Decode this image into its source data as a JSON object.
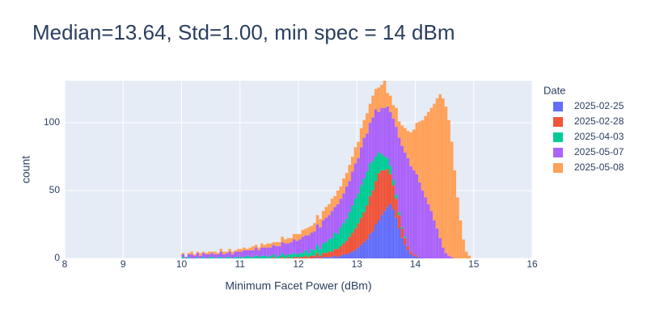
{
  "chart_data": {
    "type": "histogram",
    "barmode": "stack",
    "title": "Median=13.64, Std=1.00, min spec = 14 dBm",
    "x_label": "Minimum Facet Power (dBm)",
    "y_label": "count",
    "legend_title": "Date",
    "xlim": [
      8,
      16
    ],
    "xticks": [
      8,
      9,
      10,
      11,
      12,
      13,
      14,
      15,
      16
    ],
    "ylim": [
      0,
      131
    ],
    "yticks": [
      0,
      50,
      100
    ],
    "grid": true,
    "legend_position": "right",
    "bins": [
      10,
      10.05,
      10.1,
      10.15,
      10.2,
      10.25,
      10.3,
      10.35,
      10.4,
      10.45,
      10.5,
      10.55,
      10.6,
      10.65,
      10.7,
      10.75,
      10.8,
      10.85,
      10.9,
      10.95,
      11,
      11.05,
      11.1,
      11.15,
      11.2,
      11.25,
      11.3,
      11.35,
      11.4,
      11.45,
      11.5,
      11.55,
      11.6,
      11.65,
      11.7,
      11.75,
      11.8,
      11.85,
      11.9,
      11.95,
      12,
      12.05,
      12.1,
      12.15,
      12.2,
      12.25,
      12.3,
      12.35,
      12.4,
      12.45,
      12.5,
      12.55,
      12.6,
      12.65,
      12.7,
      12.75,
      12.8,
      12.85,
      12.9,
      12.95,
      13,
      13.05,
      13.1,
      13.15,
      13.2,
      13.25,
      13.3,
      13.35,
      13.4,
      13.45,
      13.5,
      13.55,
      13.6,
      13.65,
      13.7,
      13.75,
      13.8,
      13.85,
      13.9,
      13.95,
      14,
      14.05,
      14.1,
      14.15,
      14.2,
      14.25,
      14.3,
      14.35,
      14.4,
      14.45,
      14.5,
      14.55,
      14.6,
      14.65,
      14.7,
      14.75,
      14.8,
      14.85,
      14.9,
      14.95,
      15
    ],
    "series": [
      {
        "name": "2025-02-25",
        "color": "#636efa",
        "values": [
          0,
          0,
          0,
          0,
          0,
          0,
          0,
          0,
          0,
          0,
          0,
          0,
          0,
          0,
          0,
          0,
          0,
          0,
          0,
          0,
          0,
          0,
          0,
          0,
          0,
          0,
          0,
          0,
          0,
          0,
          0,
          0,
          0,
          0,
          0,
          0,
          0,
          0,
          0,
          0,
          0,
          0,
          0,
          0,
          0,
          0,
          1,
          0,
          1,
          1,
          1,
          1,
          2,
          1,
          2,
          3,
          3,
          4,
          5,
          6,
          8,
          10,
          12,
          14,
          18,
          20,
          25,
          28,
          32,
          35,
          38,
          40,
          36,
          30,
          22,
          15,
          10,
          6,
          3,
          2,
          1,
          1,
          0,
          0,
          0,
          0,
          0,
          0,
          0,
          0,
          0,
          0,
          0,
          0,
          0,
          0,
          0,
          0,
          0,
          0
        ]
      },
      {
        "name": "2025-02-28",
        "color": "#EF553B",
        "values": [
          0,
          0,
          0,
          0,
          0,
          0,
          0,
          0,
          0,
          0,
          0,
          0,
          0,
          0,
          0,
          0,
          0,
          0,
          0,
          0,
          0,
          0,
          0,
          0,
          0,
          0,
          0,
          0,
          0,
          0,
          0,
          1,
          0,
          0,
          1,
          0,
          1,
          0,
          1,
          1,
          1,
          1,
          2,
          1,
          2,
          2,
          3,
          2,
          3,
          3,
          4,
          4,
          5,
          6,
          7,
          8,
          10,
          12,
          14,
          16,
          18,
          20,
          22,
          25,
          28,
          30,
          32,
          35,
          33,
          30,
          28,
          22,
          18,
          14,
          10,
          7,
          5,
          3,
          2,
          1,
          1,
          0,
          0,
          0,
          0,
          0,
          0,
          0,
          0,
          0,
          0,
          0,
          0,
          0,
          0,
          0,
          0,
          0,
          0,
          0
        ]
      },
      {
        "name": "2025-04-03",
        "color": "#00cc96",
        "values": [
          1,
          0,
          1,
          0,
          0,
          1,
          0,
          1,
          0,
          1,
          1,
          0,
          1,
          1,
          0,
          1,
          1,
          0,
          1,
          1,
          1,
          1,
          2,
          1,
          1,
          2,
          1,
          2,
          2,
          1,
          2,
          2,
          1,
          2,
          3,
          2,
          2,
          3,
          3,
          2,
          3,
          3,
          4,
          3,
          5,
          4,
          6,
          5,
          7,
          8,
          9,
          10,
          12,
          11,
          14,
          15,
          16,
          18,
          20,
          22,
          22,
          24,
          25,
          25,
          24,
          22,
          18,
          15,
          12,
          10,
          8,
          6,
          4,
          3,
          2,
          1,
          1,
          0,
          0,
          0,
          0,
          0,
          0,
          0,
          0,
          0,
          0,
          0,
          0,
          0,
          0,
          0,
          0,
          0,
          0,
          0,
          0,
          0,
          0,
          0
        ]
      },
      {
        "name": "2025-05-07",
        "color": "#ab63fa",
        "values": [
          2,
          1,
          2,
          3,
          2,
          3,
          2,
          3,
          3,
          2,
          3,
          3,
          2,
          4,
          3,
          3,
          4,
          3,
          4,
          4,
          4,
          5,
          4,
          5,
          5,
          6,
          5,
          6,
          6,
          7,
          6,
          7,
          8,
          7,
          8,
          9,
          8,
          9,
          10,
          10,
          10,
          12,
          11,
          13,
          12,
          14,
          15,
          16,
          17,
          18,
          18,
          20,
          19,
          22,
          21,
          22,
          24,
          23,
          25,
          26,
          26,
          28,
          30,
          28,
          30,
          32,
          35,
          30,
          34,
          36,
          38,
          40,
          45,
          50,
          55,
          60,
          62,
          65,
          63,
          62,
          60,
          55,
          50,
          45,
          40,
          35,
          28,
          22,
          15,
          8,
          4,
          2,
          1,
          0,
          0,
          0,
          0,
          0,
          0,
          0
        ]
      },
      {
        "name": "2025-05-08",
        "color": "#FFA15A",
        "values": [
          1,
          0,
          1,
          2,
          1,
          1,
          2,
          1,
          1,
          2,
          1,
          2,
          1,
          2,
          2,
          1,
          2,
          2,
          1,
          2,
          2,
          2,
          1,
          2,
          3,
          2,
          2,
          3,
          2,
          3,
          3,
          2,
          3,
          3,
          4,
          3,
          4,
          3,
          4,
          5,
          4,
          5,
          5,
          6,
          5,
          6,
          7,
          6,
          7,
          8,
          8,
          9,
          8,
          10,
          9,
          11,
          10,
          12,
          11,
          12,
          12,
          14,
          13,
          15,
          14,
          16,
          15,
          18,
          17,
          20,
          10,
          12,
          10,
          14,
          12,
          15,
          18,
          20,
          25,
          30,
          38,
          45,
          52,
          60,
          68,
          76,
          86,
          96,
          106,
          110,
          108,
          100,
          85,
          65,
          45,
          28,
          14,
          5,
          2,
          0
        ]
      }
    ]
  }
}
